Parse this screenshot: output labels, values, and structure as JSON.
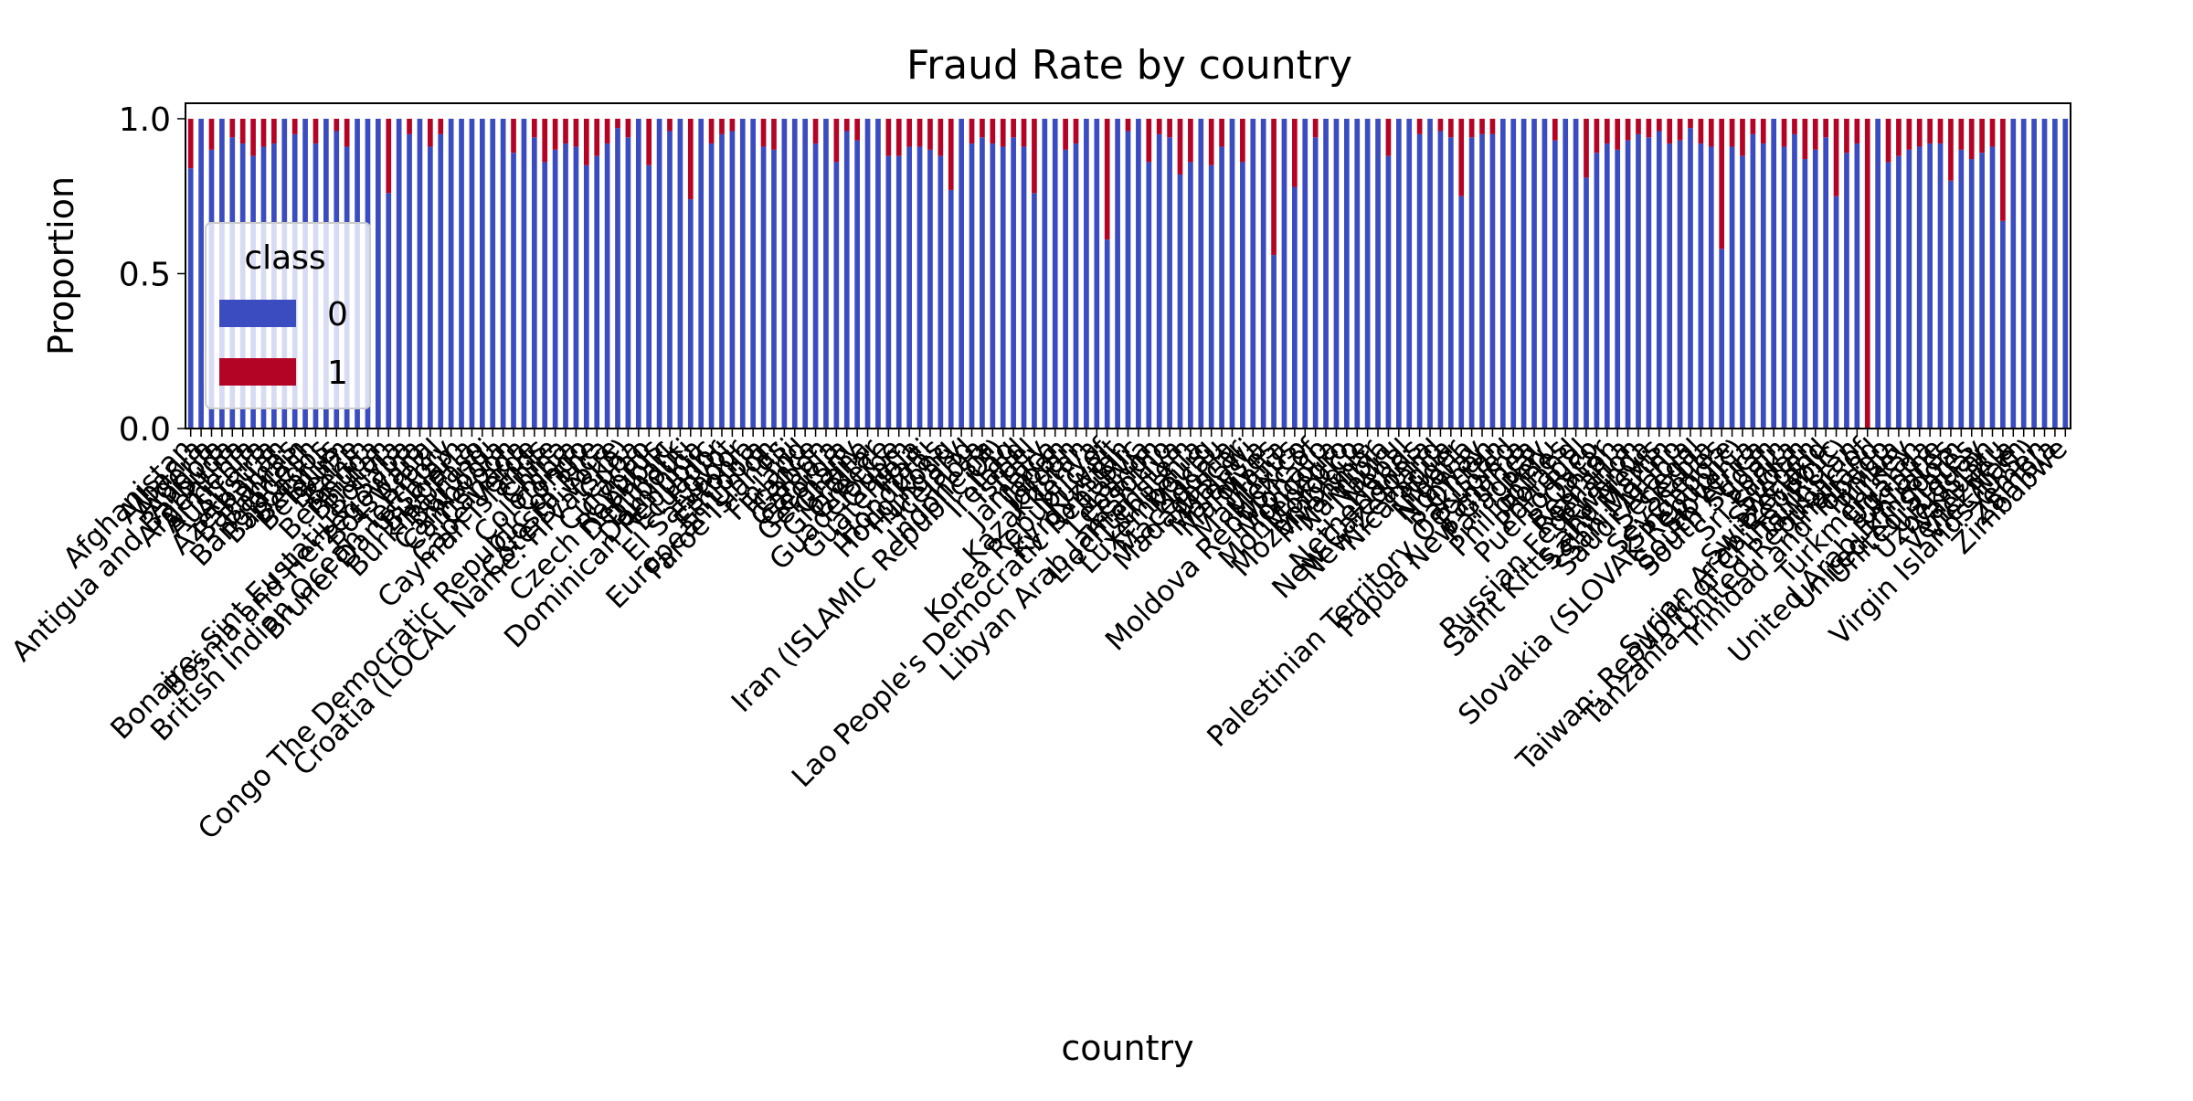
{
  "colors": {
    "class_0": "#3b4cc0",
    "class_1": "#b40426"
  },
  "chart_data": {
    "type": "bar",
    "stacked": true,
    "title": "Fraud Rate by country",
    "xlabel": "country",
    "ylabel": "Proportion",
    "ylim": [
      0,
      1.05
    ],
    "yticks": [
      "0.0",
      "0.5",
      "1.0"
    ],
    "legend": {
      "title": "class",
      "entries": [
        "0",
        "1"
      ],
      "placement": "center-left"
    },
    "categories": [
      "Afghanistan",
      "Albania",
      "Algeria",
      "Angola",
      "Antigua and Barbuda",
      "Argentina",
      "Armenia",
      "Australia",
      "Austria",
      "Azerbaijan",
      "Bahamas",
      "Bahrain",
      "Bangladesh",
      "Barbados",
      "Belarus",
      "Belgium",
      "Belize",
      "Benin",
      "Bermuda",
      "Bhutan",
      "Bolivia",
      "Bonaire; Sint Eustatius; Saba",
      "Bosnia and Herzegowina",
      "Botswana",
      "Brazil",
      "British Indian Ocean Territory",
      "Brunei Darussalam",
      "Bulgaria",
      "Burkina Faso",
      "Burundi",
      "Cambodia",
      "Cameroon",
      "Canada",
      "Cape Verde",
      "Cayman Islands",
      "Chile",
      "China",
      "Colombia",
      "Congo",
      "Congo The Democratic Republic of The",
      "Costa Rica",
      "Cote D'ivoire",
      "Croatia (LOCAL Name: Hrvatska)",
      "Cuba",
      "Curacao",
      "Cyprus",
      "Czech Republic",
      "Denmark",
      "Djibouti",
      "Dominica",
      "Dominican Republic",
      "Ecuador",
      "Egypt",
      "El Salvador",
      "Estonia",
      "Ethiopia",
      "European Union",
      "Faroe Islands",
      "Fiji",
      "Finland",
      "France",
      "Gabon",
      "Gambia",
      "Georgia",
      "Germany",
      "Ghana",
      "Gibraltar",
      "Greece",
      "Guadeloupe",
      "Guam",
      "Guatemala",
      "Haiti",
      "Honduras",
      "Hong Kong",
      "Hungary",
      "Iceland",
      "India",
      "Indonesia",
      "Iran (ISLAMIC Republic Of)",
      "Iraq",
      "Ireland",
      "Israel",
      "Italy",
      "Jamaica",
      "Japan",
      "Jordan",
      "Kazakhstan",
      "Kenya",
      "Korea Republic of",
      "Kuwait",
      "Kyrgyzstan",
      "Lao People's Democratic Republic",
      "Latvia",
      "Lebanon",
      "Lesotho",
      "Libyan Arab Jamahiriya",
      "Liechtenstein",
      "Lithuania",
      "Luxembourg",
      "Macau",
      "Macedonia",
      "Madagascar",
      "Malawi",
      "Malaysia",
      "Maldives",
      "Malta",
      "Mauritius",
      "Mexico",
      "Moldova Republic of",
      "Monaco",
      "Mongolia",
      "Montenegro",
      "Morocco",
      "Mozambique",
      "Myanmar",
      "Namibia",
      "Nauru",
      "Nepal",
      "Netherlands",
      "New Caledonia",
      "New Zealand",
      "Nicaragua",
      "Niger",
      "Nigeria",
      "Norway",
      "Oman",
      "Pakistan",
      "Palestinian Territory Occupied",
      "Panama",
      "Papua New Guinea",
      "Paraguay",
      "Peru",
      "Philippines",
      "Poland",
      "Portugal",
      "Puerto Rico",
      "Qatar",
      "Reunion",
      "Romania",
      "Russian Federation",
      "Rwanda",
      "Saint Kitts and Nevis",
      "Saint Martin",
      "San Marino",
      "Saudi Arabia",
      "Senegal",
      "Serbia",
      "Seychelles",
      "Singapore",
      "Slovakia (SLOVAK Republic)",
      "Slovenia",
      "South Africa",
      "South Sudan",
      "Spain",
      "Sri Lanka",
      "Sudan",
      "Sweden",
      "Switzerland",
      "Syrian Arab Republic",
      "Taiwan; Republic of China (ROC)",
      "Tajikistan",
      "Tanzania United Republic of",
      "Thailand",
      "Trinidad and Tobago",
      "Tunisia",
      "Turkey",
      "Turkmenistan",
      "Uganda",
      "Ukraine",
      "United Arab Emirates",
      "United Kingdom",
      "United States",
      "Uruguay",
      "Uzbekistan",
      "Vanuatu",
      "Venezuela",
      "Viet Nam",
      "Virgin Islands (U.S.)",
      "Yemen",
      "Zambia",
      "Zimbabwe"
    ],
    "series": [
      {
        "name": "1",
        "values": [
          0.16,
          0.0,
          0.1,
          0.0,
          0.06,
          0.08,
          0.12,
          0.09,
          0.08,
          0.0,
          0.05,
          0.0,
          0.08,
          0.0,
          0.04,
          0.09,
          0.0,
          0.0,
          0.0,
          0.24,
          0.0,
          0.05,
          0.0,
          0.09,
          0.05,
          0.0,
          0.0,
          0.0,
          0.0,
          0.0,
          0.0,
          0.11,
          0.0,
          0.06,
          0.14,
          0.1,
          0.08,
          0.09,
          0.15,
          0.12,
          0.08,
          0.03,
          0.06,
          0.0,
          0.15,
          0.0,
          0.04,
          0.0,
          0.26,
          0.0,
          0.08,
          0.05,
          0.04,
          0.0,
          0.0,
          0.09,
          0.1,
          0.0,
          0.0,
          0.0,
          0.08,
          0.0,
          0.14,
          0.04,
          0.07,
          0.0,
          0.0,
          0.12,
          0.12,
          0.09,
          0.09,
          0.1,
          0.12,
          0.23,
          0.0,
          0.08,
          0.06,
          0.08,
          0.09,
          0.06,
          0.09,
          0.24,
          0.0,
          0.0,
          0.1,
          0.08,
          0.0,
          0.0,
          0.39,
          0.0,
          0.04,
          0.0,
          0.14,
          0.05,
          0.06,
          0.18,
          0.14,
          0.0,
          0.15,
          0.09,
          0.0,
          0.14,
          0.0,
          0.0,
          0.44,
          0.0,
          0.22,
          0.0,
          0.06,
          0.0,
          0.0,
          0.0,
          0.0,
          0.0,
          0.0,
          0.12,
          0.0,
          0.0,
          0.05,
          0.0,
          0.04,
          0.06,
          0.25,
          0.06,
          0.05,
          0.05,
          0.0,
          0.0,
          0.0,
          0.0,
          0.0,
          0.07,
          0.0,
          0.0,
          0.19,
          0.11,
          0.08,
          0.1,
          0.07,
          0.05,
          0.06,
          0.04,
          0.08,
          0.07,
          0.03,
          0.08,
          0.09,
          0.42,
          0.09,
          0.12,
          0.05,
          0.08,
          0.0,
          0.09,
          0.05,
          0.13,
          0.1,
          0.06,
          0.25,
          0.11,
          0.08,
          1.0,
          0.0,
          0.14,
          0.12,
          0.1,
          0.09,
          0.08,
          0.08,
          0.2,
          0.1,
          0.13,
          0.11,
          0.09,
          0.33,
          0.0,
          0.0,
          0.0,
          0.0,
          0.0,
          0.0
        ]
      }
    ]
  }
}
